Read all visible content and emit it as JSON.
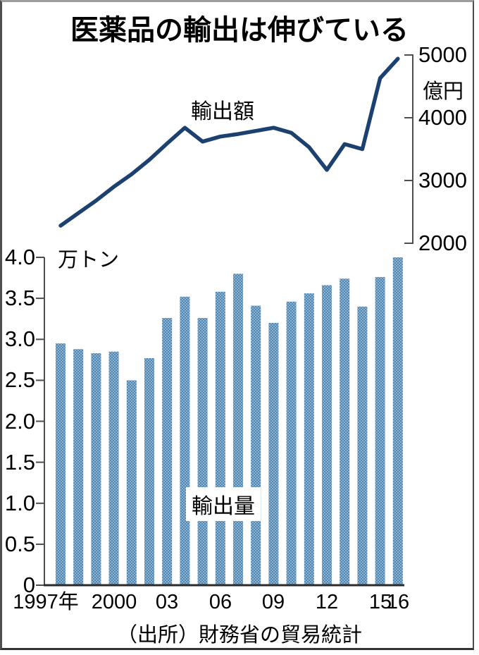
{
  "page": {
    "title": "医薬品の輸出は伸びている",
    "source": "（出所）財務省の貿易統計"
  },
  "colors": {
    "line": "#1c4170",
    "bar_dark": "#4f87b2",
    "bar_light": "#8db3d0",
    "axis": "#4d4d4d",
    "baseline": "#2b2b2b",
    "text": "#000000"
  },
  "chart_data": [
    {
      "type": "line",
      "name": "export-value",
      "label": "輸出額",
      "unit": "億円",
      "axis_side": "right",
      "x": [
        1997,
        1998,
        1999,
        2000,
        2001,
        2002,
        2003,
        2004,
        2005,
        2006,
        2007,
        2008,
        2009,
        2010,
        2011,
        2012,
        2013,
        2014,
        2015,
        2016
      ],
      "values": [
        2280,
        2480,
        2680,
        2900,
        3100,
        3330,
        3590,
        3840,
        3620,
        3700,
        3740,
        3790,
        3840,
        3760,
        3530,
        3170,
        3580,
        3500,
        4630,
        4940
      ],
      "ylim": [
        2000,
        5000
      ],
      "yticks": [
        5000,
        4000,
        3000,
        2000
      ],
      "grid": false
    },
    {
      "type": "bar",
      "name": "export-volume",
      "label": "輸出量",
      "unit": "万トン",
      "axis_side": "left",
      "x": [
        1997,
        1998,
        1999,
        2000,
        2001,
        2002,
        2003,
        2004,
        2005,
        2006,
        2007,
        2008,
        2009,
        2010,
        2011,
        2012,
        2013,
        2014,
        2015,
        2016
      ],
      "values": [
        2.95,
        2.88,
        2.83,
        2.85,
        2.5,
        2.77,
        3.26,
        3.52,
        3.26,
        3.58,
        3.8,
        3.41,
        3.2,
        3.46,
        3.56,
        3.66,
        3.74,
        3.4,
        3.76,
        4.0
      ],
      "ylim": [
        0,
        4.0
      ],
      "ytick_values": [
        4.0,
        3.5,
        3.0,
        2.5,
        2.0,
        1.5,
        1.0,
        0.5,
        0
      ],
      "ytick_labels": [
        "4.0",
        "3.5",
        "3.0",
        "2.5",
        "2.0",
        "1.5",
        "1.0",
        "0.5",
        "0"
      ],
      "grid": false
    }
  ],
  "x_axis": {
    "ticks": [
      {
        "label": "1997年",
        "year": 1997
      },
      {
        "label": "2000",
        "year": 2000
      },
      {
        "label": "03",
        "year": 2003
      },
      {
        "label": "06",
        "year": 2006
      },
      {
        "label": "09",
        "year": 2009
      },
      {
        "label": "12",
        "year": 2012
      },
      {
        "label": "15",
        "year": 2015
      },
      {
        "label": "16",
        "year": 2016
      }
    ]
  }
}
